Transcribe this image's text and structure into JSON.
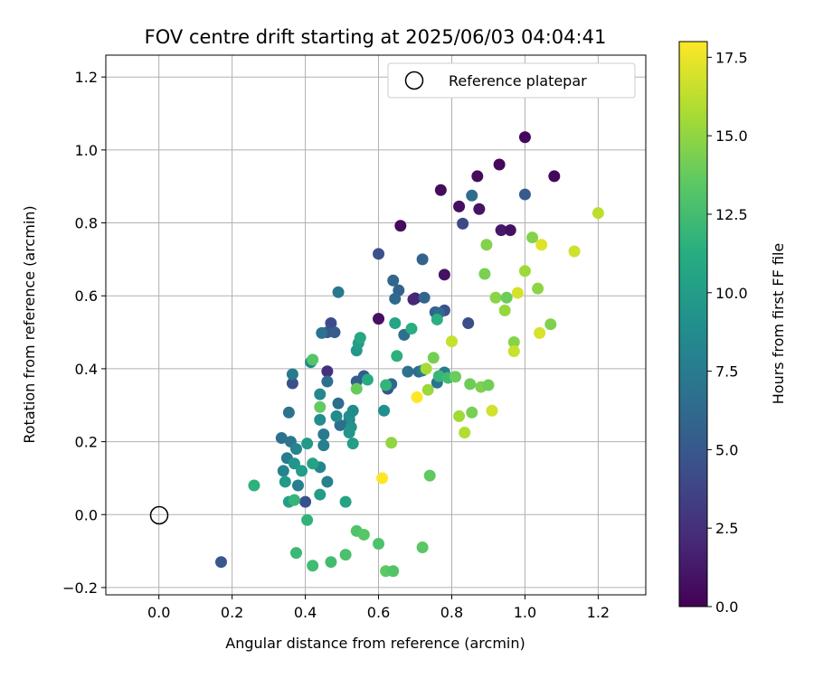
{
  "chart_data": {
    "type": "scatter",
    "title": "FOV centre drift starting at 2025/06/03 04:04:41",
    "xlabel": "Angular distance from reference (arcmin)",
    "ylabel": "Rotation from reference (arcmin)",
    "xlim": [
      -0.145,
      1.33
    ],
    "ylim": [
      -0.22,
      1.26
    ],
    "xticks": [
      "0.0",
      "0.2",
      "0.4",
      "0.6",
      "0.8",
      "1.0",
      "1.2"
    ],
    "xtick_values": [
      0,
      0.2,
      0.4,
      0.6,
      0.8,
      1.0,
      1.2
    ],
    "yticks": [
      "−0.2",
      "0.0",
      "0.2",
      "0.4",
      "0.6",
      "0.8",
      "1.0",
      "1.2"
    ],
    "ytick_values": [
      -0.2,
      0,
      0.2,
      0.4,
      0.6,
      0.8,
      1.0,
      1.2
    ],
    "grid": true,
    "legend": {
      "label": "Reference platepar",
      "position": "top-right",
      "reference_point": [
        0,
        0
      ]
    },
    "colorbar": {
      "label": "Hours from first FF file",
      "range": [
        0,
        18
      ],
      "ticks": [
        "0.0",
        "2.5",
        "5.0",
        "7.5",
        "10.0",
        "12.5",
        "15.0",
        "17.5"
      ],
      "tick_values": [
        0,
        2.5,
        5,
        7.5,
        10,
        12.5,
        15,
        17.5
      ],
      "colormap": "viridis"
    },
    "points": [
      [
        1.0,
        1.035,
        0.3
      ],
      [
        0.93,
        0.96,
        0.4
      ],
      [
        1.08,
        0.928,
        0.4
      ],
      [
        0.87,
        0.928,
        0.5
      ],
      [
        0.77,
        0.89,
        0.6
      ],
      [
        0.82,
        0.845,
        0.7
      ],
      [
        0.875,
        0.838,
        1.0
      ],
      [
        0.66,
        0.792,
        0.5
      ],
      [
        0.935,
        0.78,
        1.2
      ],
      [
        0.96,
        0.78,
        0.8
      ],
      [
        0.78,
        0.658,
        0.9
      ],
      [
        0.6,
        0.537,
        0.8
      ],
      [
        0.7,
        0.593,
        1.4
      ],
      [
        0.695,
        0.59,
        2.0
      ],
      [
        0.46,
        0.393,
        2.5
      ],
      [
        0.83,
        0.798,
        4.0
      ],
      [
        0.855,
        0.875,
        6.5
      ],
      [
        1.0,
        0.878,
        5.2
      ],
      [
        0.6,
        0.715,
        4.5
      ],
      [
        0.845,
        0.525,
        4.3
      ],
      [
        0.78,
        0.56,
        4.6
      ],
      [
        0.625,
        0.345,
        4.8
      ],
      [
        0.4,
        0.035,
        4.6
      ],
      [
        0.17,
        -0.13,
        5.0
      ],
      [
        0.365,
        0.36,
        4.4
      ],
      [
        0.47,
        0.525,
        4.2
      ],
      [
        0.46,
        0.5,
        4.9
      ],
      [
        0.48,
        0.5,
        5.3
      ],
      [
        0.54,
        0.365,
        5.4
      ],
      [
        0.56,
        0.38,
        5.1
      ],
      [
        0.72,
        0.7,
        5.7
      ],
      [
        0.64,
        0.642,
        6.0
      ],
      [
        0.655,
        0.615,
        5.8
      ],
      [
        0.645,
        0.592,
        6.2
      ],
      [
        0.725,
        0.595,
        5.9
      ],
      [
        0.755,
        0.555,
        5.6
      ],
      [
        0.765,
        0.553,
        6.4
      ],
      [
        0.67,
        0.493,
        6.6
      ],
      [
        0.635,
        0.358,
        6.1
      ],
      [
        0.68,
        0.392,
        6.8
      ],
      [
        0.71,
        0.392,
        6.3
      ],
      [
        0.72,
        0.395,
        7.2
      ],
      [
        0.76,
        0.362,
        7.0
      ],
      [
        0.78,
        0.39,
        7.6
      ],
      [
        0.49,
        0.61,
        7.3
      ],
      [
        0.445,
        0.498,
        6.9
      ],
      [
        0.46,
        0.365,
        6.7
      ],
      [
        0.49,
        0.305,
        6.5
      ],
      [
        0.52,
        0.26,
        7.1
      ],
      [
        0.495,
        0.245,
        6.6
      ],
      [
        0.45,
        0.22,
        7.4
      ],
      [
        0.45,
        0.19,
        7.8
      ],
      [
        0.46,
        0.09,
        7.9
      ],
      [
        0.44,
        0.13,
        8.3
      ],
      [
        0.365,
        0.385,
        7.5
      ],
      [
        0.335,
        0.21,
        6.8
      ],
      [
        0.355,
        0.28,
        7.0
      ],
      [
        0.36,
        0.2,
        7.2
      ],
      [
        0.35,
        0.155,
        7.5
      ],
      [
        0.38,
        0.08,
        7.7
      ],
      [
        0.375,
        0.18,
        8.2
      ],
      [
        0.34,
        0.12,
        8.0
      ],
      [
        0.415,
        0.418,
        8.5
      ],
      [
        0.44,
        0.26,
        8.8
      ],
      [
        0.44,
        0.33,
        8.4
      ],
      [
        0.485,
        0.27,
        8.6
      ],
      [
        0.52,
        0.27,
        9.0
      ],
      [
        0.53,
        0.285,
        8.7
      ],
      [
        0.525,
        0.24,
        9.2
      ],
      [
        0.52,
        0.225,
        9.5
      ],
      [
        0.37,
        0.14,
        9.3
      ],
      [
        0.345,
        0.09,
        9.8
      ],
      [
        0.355,
        0.035,
        10.2
      ],
      [
        0.39,
        0.12,
        10.0
      ],
      [
        0.405,
        0.195,
        9.7
      ],
      [
        0.42,
        0.14,
        10.4
      ],
      [
        0.44,
        0.055,
        9.9
      ],
      [
        0.51,
        0.035,
        10.5
      ],
      [
        0.53,
        0.195,
        10.1
      ],
      [
        0.54,
        0.45,
        9.6
      ],
      [
        0.545,
        0.47,
        10.0
      ],
      [
        0.55,
        0.485,
        10.8
      ],
      [
        0.57,
        0.37,
        11.0
      ],
      [
        0.615,
        0.285,
        8.9
      ],
      [
        0.645,
        0.525,
        10.6
      ],
      [
        0.69,
        0.51,
        11.3
      ],
      [
        0.65,
        0.435,
        11.5
      ],
      [
        0.62,
        0.355,
        11.8
      ],
      [
        0.76,
        0.535,
        11.4
      ],
      [
        0.765,
        0.38,
        12.0
      ],
      [
        0.79,
        0.375,
        12.3
      ],
      [
        0.26,
        0.08,
        11.6
      ],
      [
        0.37,
        0.04,
        11.9
      ],
      [
        0.375,
        -0.105,
        12.2
      ],
      [
        0.405,
        -0.015,
        11.7
      ],
      [
        0.42,
        -0.14,
        12.4
      ],
      [
        0.47,
        -0.13,
        12.5
      ],
      [
        0.51,
        -0.11,
        12.8
      ],
      [
        0.54,
        -0.045,
        13.0
      ],
      [
        0.56,
        -0.055,
        13.3
      ],
      [
        0.6,
        -0.08,
        12.9
      ],
      [
        0.62,
        -0.155,
        13.5
      ],
      [
        0.64,
        -0.155,
        13.1
      ],
      [
        0.72,
        -0.09,
        13.4
      ],
      [
        0.74,
        0.107,
        13.6
      ],
      [
        0.42,
        0.425,
        13.2
      ],
      [
        0.44,
        0.295,
        13.7
      ],
      [
        0.54,
        0.345,
        13.8
      ],
      [
        0.75,
        0.43,
        14.2
      ],
      [
        0.81,
        0.378,
        13.9
      ],
      [
        0.85,
        0.358,
        14.0
      ],
      [
        0.855,
        0.28,
        14.3
      ],
      [
        0.88,
        0.35,
        14.5
      ],
      [
        0.9,
        0.355,
        14.1
      ],
      [
        0.89,
        0.66,
        14.4
      ],
      [
        0.895,
        0.74,
        14.6
      ],
      [
        0.92,
        0.595,
        14.8
      ],
      [
        0.95,
        0.595,
        13.9
      ],
      [
        0.945,
        0.56,
        15.2
      ],
      [
        0.635,
        0.197,
        15.0
      ],
      [
        0.735,
        0.342,
        15.3
      ],
      [
        0.73,
        0.4,
        15.6
      ],
      [
        0.82,
        0.27,
        15.5
      ],
      [
        0.835,
        0.225,
        15.9
      ],
      [
        0.97,
        0.473,
        14.7
      ],
      [
        1.0,
        0.668,
        15.4
      ],
      [
        1.02,
        0.76,
        14.6
      ],
      [
        1.035,
        0.62,
        14.9
      ],
      [
        1.07,
        0.522,
        14.5
      ],
      [
        0.8,
        0.475,
        16.5
      ],
      [
        0.91,
        0.285,
        16.8
      ],
      [
        0.97,
        0.448,
        16.6
      ],
      [
        0.98,
        0.608,
        16.9
      ],
      [
        1.04,
        0.498,
        17.0
      ],
      [
        1.045,
        0.74,
        17.1
      ],
      [
        1.135,
        0.722,
        16.7
      ],
      [
        1.2,
        0.827,
        16.2
      ],
      [
        0.61,
        0.1,
        18.0
      ],
      [
        0.705,
        0.322,
        18.0
      ]
    ]
  }
}
